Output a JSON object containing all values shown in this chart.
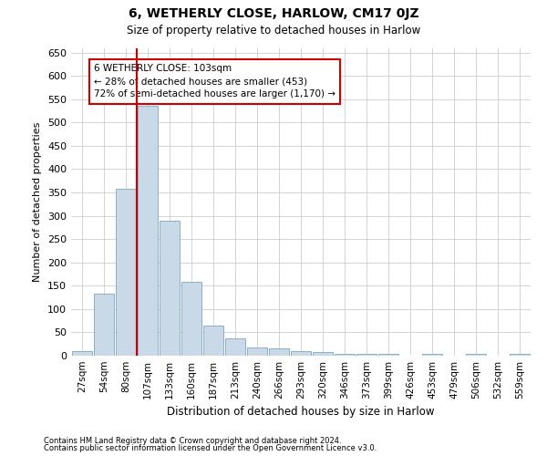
{
  "title": "6, WETHERLY CLOSE, HARLOW, CM17 0JZ",
  "subtitle": "Size of property relative to detached houses in Harlow",
  "xlabel": "Distribution of detached houses by size in Harlow",
  "ylabel": "Number of detached properties",
  "bar_labels": [
    "27sqm",
    "54sqm",
    "80sqm",
    "107sqm",
    "133sqm",
    "160sqm",
    "187sqm",
    "213sqm",
    "240sqm",
    "266sqm",
    "293sqm",
    "320sqm",
    "346sqm",
    "373sqm",
    "399sqm",
    "426sqm",
    "453sqm",
    "479sqm",
    "506sqm",
    "532sqm",
    "559sqm"
  ],
  "bar_values": [
    10,
    133,
    358,
    535,
    290,
    158,
    65,
    38,
    18,
    15,
    10,
    8,
    3,
    3,
    3,
    0,
    3,
    0,
    3,
    0,
    3
  ],
  "bar_color": "#c9d9e8",
  "bar_edge_color": "#7ba7c4",
  "vline_index": 3,
  "vline_color": "#cc0000",
  "annotation_text": "6 WETHERLY CLOSE: 103sqm\n← 28% of detached houses are smaller (453)\n72% of semi-detached houses are larger (1,170) →",
  "annotation_box_color": "#ffffff",
  "annotation_box_edge": "#cc0000",
  "ylim": [
    0,
    660
  ],
  "yticks": [
    0,
    50,
    100,
    150,
    200,
    250,
    300,
    350,
    400,
    450,
    500,
    550,
    600,
    650
  ],
  "footnote1": "Contains HM Land Registry data © Crown copyright and database right 2024.",
  "footnote2": "Contains public sector information licensed under the Open Government Licence v3.0.",
  "bg_color": "#ffffff",
  "grid_color": "#cccccc"
}
